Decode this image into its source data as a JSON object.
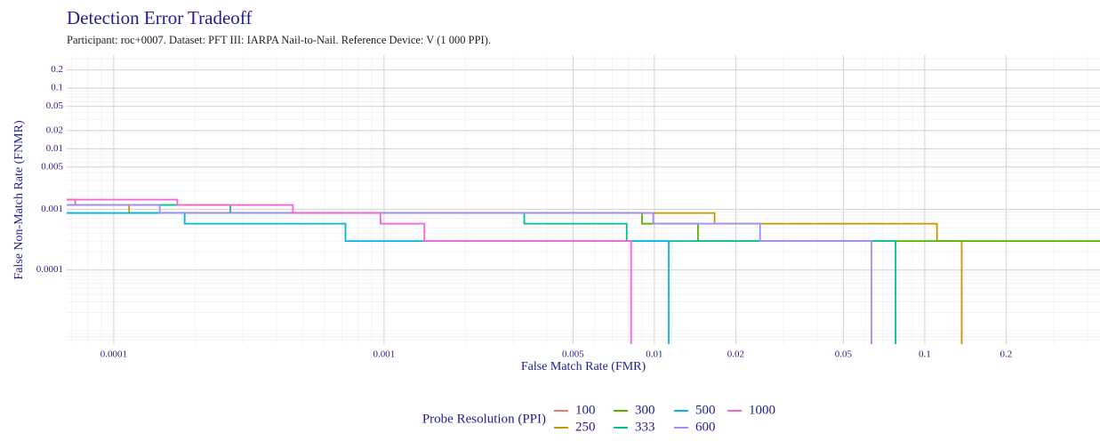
{
  "chart_data": {
    "type": "step",
    "title": "Detection Error Tradeoff",
    "subtitle": "Participant: roc+0007. Dataset: PFT III: IARPA Nail-to-Nail. Reference Device: V (1 000 PPI).",
    "x_label": "False Match Rate (FMR)",
    "y_label": "False Non-Match Rate (FNMR)",
    "legend_title": "Probe Resolution (PPI)",
    "x_log": true,
    "y_log": true,
    "grid": true,
    "legend_position": "bottom",
    "xlim": [
      6.7e-05,
      0.445
    ],
    "ylim": [
      6e-06,
      0.35
    ],
    "xticks": [
      0.0001,
      0.001,
      0.005,
      0.01,
      0.02,
      0.05,
      0.1,
      0.2
    ],
    "yticks": [
      0.2,
      0.1,
      0.05,
      0.02,
      0.01,
      0.005,
      0.001,
      0.0001
    ],
    "series": [
      {
        "name": "100",
        "color": "#F8766D",
        "x": [
          6.7e-05,
          7.2e-05,
          0.0001
        ],
        "values": [
          0.00145,
          0.00118,
          0.00118
        ]
      },
      {
        "name": "250",
        "color": "#C49A00",
        "x": [
          6.7e-05,
          0.000114,
          0.0167,
          0.111,
          0.137
        ],
        "values": [
          0.00118,
          0.00087,
          0.00058,
          0.0003,
          6e-06
        ]
      },
      {
        "name": "300",
        "color": "#53B400",
        "x": [
          6.7e-05,
          0.009,
          0.0145,
          0.445
        ],
        "values": [
          0.00087,
          0.00058,
          0.0003,
          0.0003
        ]
      },
      {
        "name": "333",
        "color": "#00C094",
        "x": [
          6.7e-05,
          0.00027,
          0.0033,
          0.0079,
          0.078
        ],
        "values": [
          0.00118,
          0.00087,
          0.00058,
          0.0003,
          6e-06
        ]
      },
      {
        "name": "500",
        "color": "#00B6EB",
        "x": [
          6.7e-05,
          0.000183,
          0.00072,
          0.0113
        ],
        "values": [
          0.00087,
          0.00058,
          0.0003,
          6e-06
        ]
      },
      {
        "name": "600",
        "color": "#A58AFF",
        "x": [
          6.7e-05,
          0.000148,
          0.0099,
          0.0246,
          0.0635
        ],
        "values": [
          0.00118,
          0.00087,
          0.00058,
          0.0003,
          6e-06
        ]
      },
      {
        "name": "1000",
        "color": "#FB61D7",
        "x": [
          6.7e-05,
          0.000172,
          0.00046,
          0.00097,
          0.00141,
          0.0082
        ],
        "values": [
          0.00145,
          0.00118,
          0.00087,
          0.00058,
          0.0003,
          6e-06
        ]
      }
    ]
  }
}
